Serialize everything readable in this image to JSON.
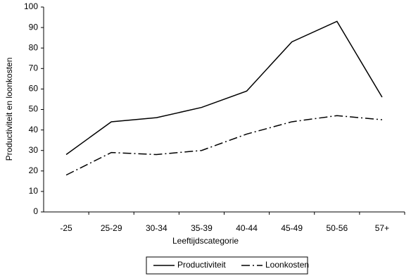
{
  "chart_data": {
    "type": "line",
    "x_label": "Leeftijdscategorie",
    "y_label": "Productiviteit en loonkosten",
    "categories": [
      "-25",
      "25-29",
      "30-34",
      "35-39",
      "40-44",
      "45-49",
      "50-56",
      "57+"
    ],
    "series": [
      {
        "name": "Productiviteit",
        "color": "#000000",
        "style": "solid",
        "values": [
          28,
          44,
          46,
          51,
          59,
          83,
          93,
          56
        ]
      },
      {
        "name": "Loonkosten",
        "color": "#000000",
        "style": "dashdot",
        "values": [
          18,
          29,
          28,
          30,
          38,
          44,
          47,
          45
        ]
      }
    ],
    "ylim": [
      0,
      100
    ],
    "yticks": [
      0,
      10,
      20,
      30,
      40,
      50,
      60,
      70,
      80,
      90,
      100
    ],
    "grid": false,
    "legend": "bottom"
  }
}
